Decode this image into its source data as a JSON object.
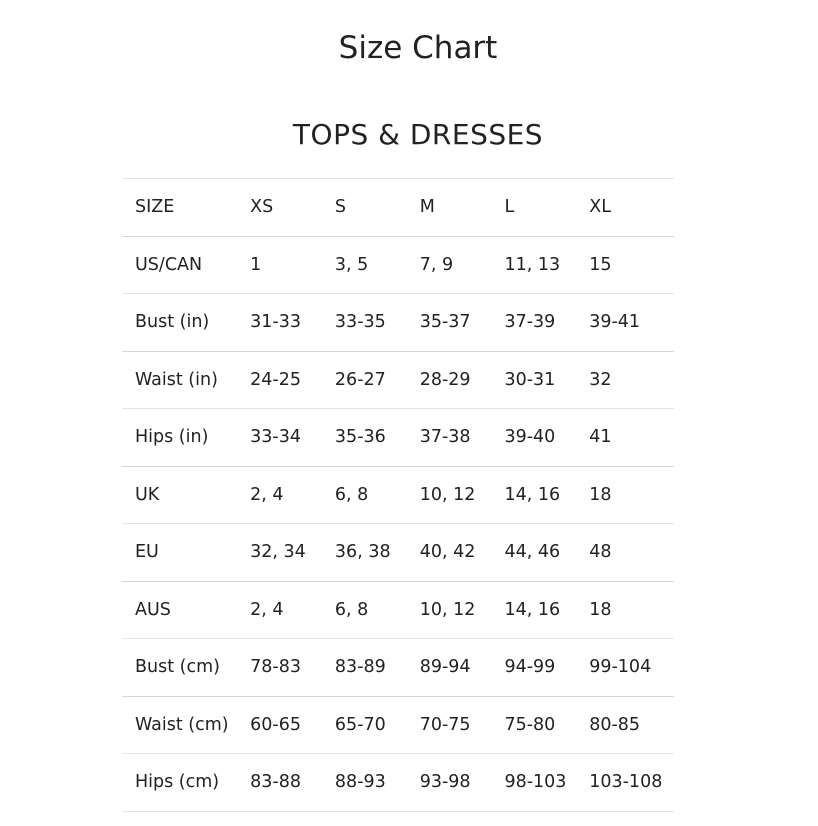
{
  "title": "Size Chart",
  "section": "TOPS & DRESSES",
  "table": {
    "header": [
      "SIZE",
      "XS",
      "S",
      "M",
      "L",
      "XL"
    ],
    "rows": [
      [
        "US/CAN",
        "1",
        "3, 5",
        "7, 9",
        "11, 13",
        "15"
      ],
      [
        "Bust (in)",
        "31-33",
        "33-35",
        "35-37",
        "37-39",
        "39-41"
      ],
      [
        "Waist (in)",
        "24-25",
        "26-27",
        "28-29",
        "30-31",
        "32"
      ],
      [
        "Hips (in)",
        "33-34",
        "35-36",
        "37-38",
        "39-40",
        "41"
      ],
      [
        "UK",
        "2, 4",
        "6, 8",
        "10, 12",
        "14, 16",
        "18"
      ],
      [
        "EU",
        "32, 34",
        "36, 38",
        "40, 42",
        "44, 46",
        "48"
      ],
      [
        "AUS",
        "2, 4",
        "6, 8",
        "10, 12",
        "14, 16",
        "18"
      ],
      [
        "Bust (cm)",
        "78-83",
        "83-89",
        "89-94",
        "94-99",
        "99-104"
      ],
      [
        "Waist (cm)",
        "60-65",
        "65-70",
        "70-75",
        "75-80",
        "80-85"
      ],
      [
        "Hips (cm)",
        "83-88",
        "88-93",
        "93-98",
        "98-103",
        "103-108"
      ]
    ]
  }
}
